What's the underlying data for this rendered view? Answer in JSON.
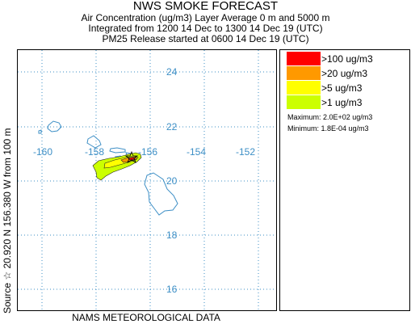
{
  "title": "NWS SMOKE FORECAST",
  "subtitle_line1": "Air Concentration (ug/m3) Layer Average    0 m and  5000 m",
  "subtitle_line2": "Integrated from 1200 14 Dec to 1300 14 Dec 19 (UTC)",
  "subtitle_line3": "PM25 Release started at 0600 14 Dec 19 (UTC)",
  "source_label": "Source ☆  20.920  N 156.380  W        from  100 m",
  "bottom_label": "NAMS METEOROLOGICAL DATA",
  "map": {
    "lon_ticks": [
      "-160",
      "-158",
      "-156",
      "-154",
      "-152"
    ],
    "lat_ticks": [
      "24",
      "22",
      "20",
      "18",
      "16"
    ],
    "grid_color": "#3d8fc6",
    "coast_color": "#3d8fc6"
  },
  "legend": {
    "items": [
      {
        "label": ">100 ug/m3",
        "color": "#ff0000"
      },
      {
        "label": ">20 ug/m3",
        "color": "#ff9900"
      },
      {
        "label": ">5 ug/m3",
        "color": "#ffff00"
      },
      {
        "label": ">1 ug/m3",
        "color": "#ccff00"
      }
    ],
    "maximum": "Maximum: 2.0E+02 ug/m3",
    "minimum": "Minimum: 1.8E-04 ug/m3"
  }
}
